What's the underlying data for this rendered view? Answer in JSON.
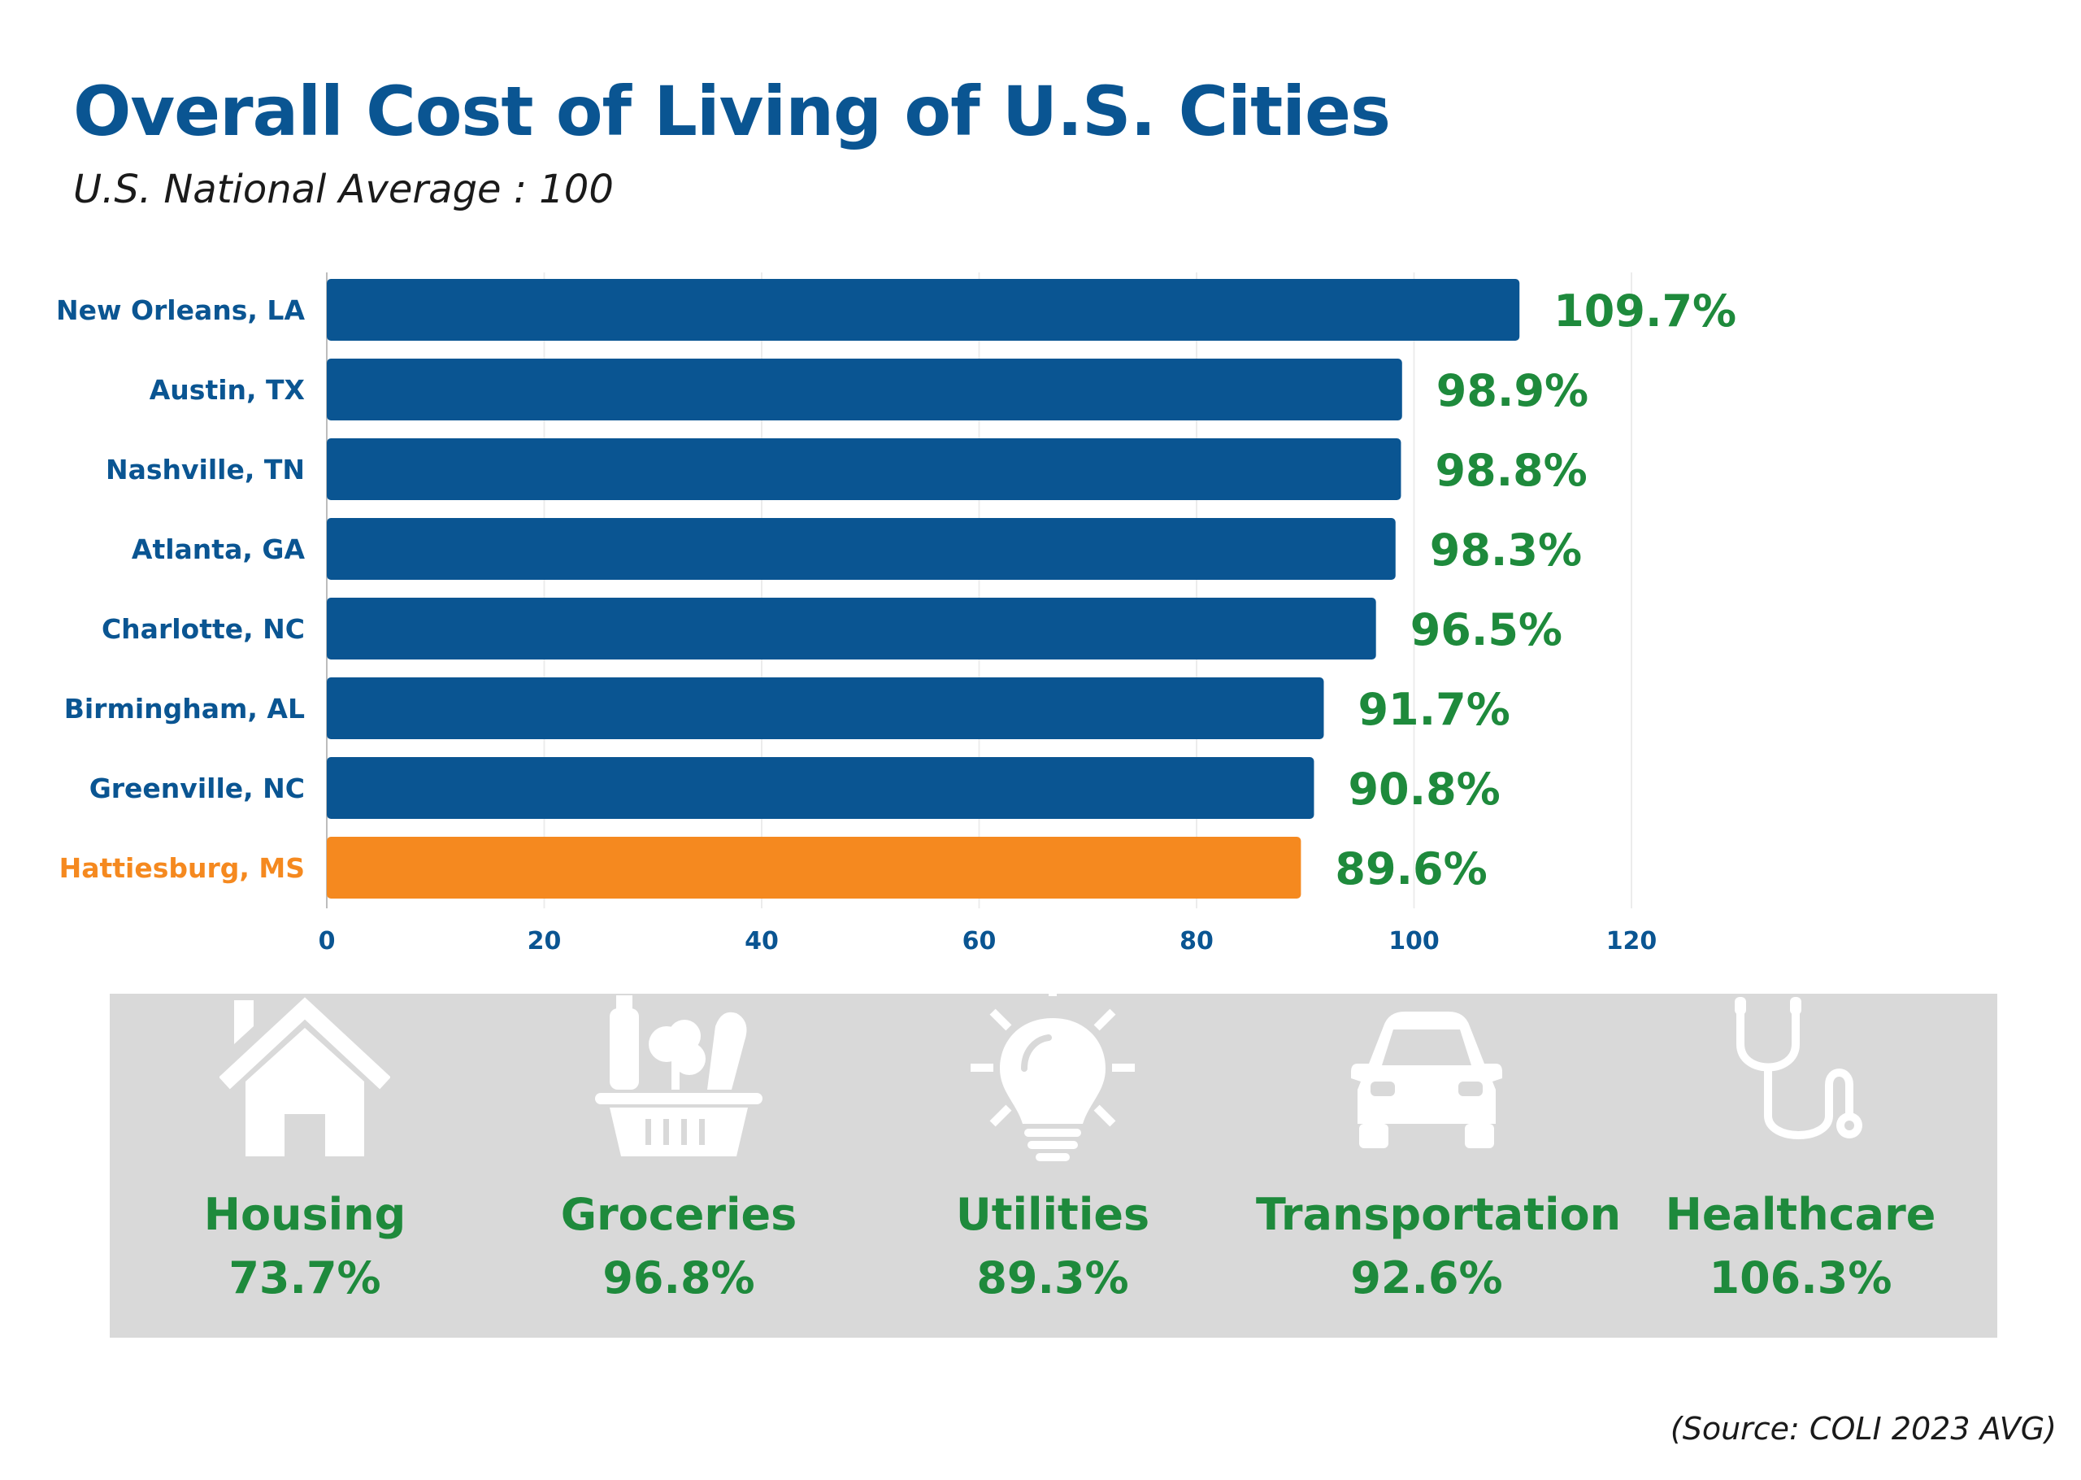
{
  "header": {
    "title": "Overall Cost of Living of U.S. Cities",
    "subtitle": "U.S. National Average : 100"
  },
  "colors": {
    "bar": "#0a5592",
    "highlight": "#f5891f",
    "value_text": "#1e8a3c",
    "axis_text": "#0a5592",
    "panel": "#d9d9d9",
    "icon": "#ffffff"
  },
  "chart_data": {
    "type": "bar",
    "orientation": "horizontal",
    "categories": [
      "New Orleans, LA",
      "Austin, TX",
      "Nashville, TN",
      "Atlanta, GA",
      "Charlotte, NC",
      "Birmingham, AL",
      "Greenville, NC",
      "Hattiesburg, MS"
    ],
    "values": [
      109.7,
      98.9,
      98.8,
      98.3,
      96.5,
      91.7,
      90.8,
      89.6
    ],
    "value_labels": [
      "109.7%",
      "98.9%",
      "98.8%",
      "98.3%",
      "96.5%",
      "91.7%",
      "90.8%",
      "89.6%"
    ],
    "highlight": "Hattiesburg, MS",
    "xlim": [
      0,
      120
    ],
    "xticks": [
      0,
      20,
      40,
      60,
      80,
      100,
      120
    ],
    "grid": true
  },
  "categories_panel": [
    {
      "icon": "house-icon",
      "label": "Housing",
      "value": "73.7%"
    },
    {
      "icon": "grocery-basket-icon",
      "label": "Groceries",
      "value": "96.8%"
    },
    {
      "icon": "lightbulb-icon",
      "label": "Utilities",
      "value": "89.3%"
    },
    {
      "icon": "car-icon",
      "label": "Transportation",
      "value": "92.6%"
    },
    {
      "icon": "stethoscope-icon",
      "label": "Healthcare",
      "value": "106.3%"
    }
  ],
  "footer": {
    "source": "(Source: COLI 2023 AVG)"
  }
}
